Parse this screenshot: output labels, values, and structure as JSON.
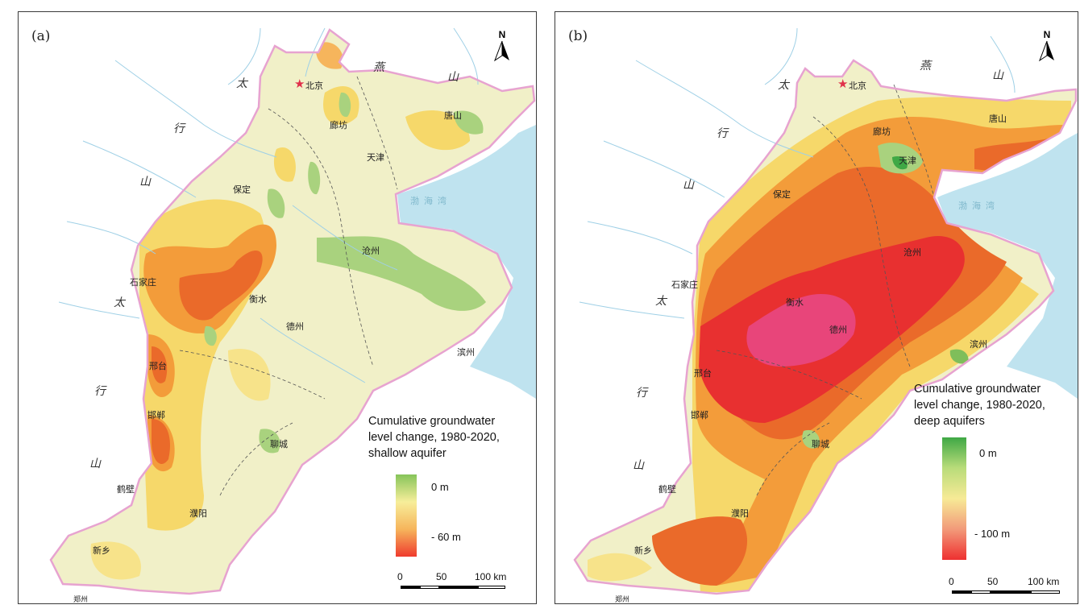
{
  "colors": {
    "border_pink": "#e7a3d0",
    "sea": "#bfe3ef",
    "river": "#9fd0e6",
    "base_pale": "#f1f0c8",
    "green": "#a9d27e",
    "yellow": "#f6d86a",
    "orange": "#f39c3a",
    "dark_orange": "#ea6a2a",
    "red": "#e83030",
    "pink": "#e8457a"
  },
  "panel_a": {
    "label": "(a)",
    "north_label": "N",
    "legend": {
      "title_lines": [
        "Cumulative groundwater",
        "level change, 1980-2020,",
        "shallow aquifer"
      ],
      "top_label": "0  m",
      "bottom_label": "- 60  m",
      "gradient_colors": [
        "#86c45a",
        "#f7ee9a",
        "#f6b55c",
        "#ef3b2e"
      ]
    },
    "scale": {
      "labels": [
        "0",
        "50",
        "100 km"
      ]
    },
    "places": {
      "beijing": "北京",
      "langfang": "廊坊",
      "tangshan": "唐山",
      "tianjin": "天津",
      "baoding": "保定",
      "cangzhou": "沧州",
      "shijiazhuang": "石家庄",
      "hengshui": "衡水",
      "dezhou": "德州",
      "binzhou": "滨州",
      "xingtai": "邢台",
      "handan": "邯郸",
      "liaocheng": "聊城",
      "hebi": "鹤壁",
      "puyang": "濮阳",
      "xinxiang": "新乡",
      "zhengzhou": "郑州"
    },
    "mountains": {
      "yan": "燕",
      "shan": "山",
      "tai": "太",
      "hang": "行"
    },
    "sea_label": "渤海湾"
  },
  "panel_b": {
    "label": "(b)",
    "north_label": "N",
    "legend": {
      "title_lines": [
        "Cumulative groundwater",
        "level change, 1980-2020,",
        "deep aquifers"
      ],
      "top_label": "0  m",
      "bottom_label": "- 100  m",
      "gradient_colors": [
        "#3fa845",
        "#b9dc7a",
        "#f7ea96",
        "#f29a7a",
        "#ee3030"
      ]
    },
    "scale": {
      "labels": [
        "0",
        "50",
        "100 km"
      ]
    },
    "places": {
      "beijing": "北京",
      "langfang": "廊坊",
      "tangshan": "唐山",
      "tianjin": "天津",
      "baoding": "保定",
      "cangzhou": "沧州",
      "shijiazhuang": "石家庄",
      "hengshui": "衡水",
      "dezhou": "德州",
      "binzhou": "滨州",
      "xingtai": "邢台",
      "handan": "邯郸",
      "liaocheng": "聊城",
      "hebi": "鹤壁",
      "puyang": "濮阳",
      "xinxiang": "新乡",
      "zhengzhou": "郑州"
    },
    "mountains": {
      "yan": "燕",
      "shan": "山",
      "tai": "太",
      "hang": "行"
    },
    "sea_label": "渤海湾"
  }
}
